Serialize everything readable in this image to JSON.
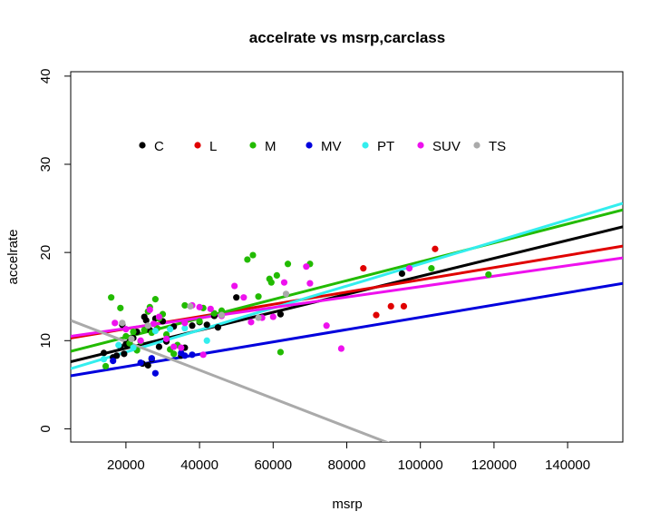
{
  "chart_data": {
    "type": "scatter",
    "title": "accelrate vs msrp,carclass",
    "xlabel": "msrp",
    "ylabel": "accelrate",
    "xlim": [
      5000,
      155000
    ],
    "ylim": [
      -1.5,
      40.5
    ],
    "x_ticks": [
      20000,
      40000,
      60000,
      80000,
      100000,
      120000,
      140000
    ],
    "x_tick_labels": [
      "20000",
      "40000",
      "60000",
      "80000",
      "100000",
      "120000",
      "140000"
    ],
    "y_ticks": [
      0,
      10,
      20,
      30,
      40
    ],
    "y_tick_labels": [
      "0",
      "10",
      "20",
      "30",
      "40"
    ],
    "grid": false,
    "legend": {
      "placement": "top-left-inside",
      "entries": [
        "C",
        "L",
        "M",
        "MV",
        "PT",
        "SUV",
        "TS"
      ]
    },
    "series": [
      {
        "name": "C",
        "color": "#000000",
        "points": [
          [
            14000,
            8.6
          ],
          [
            16500,
            8.1
          ],
          [
            17500,
            8.3
          ],
          [
            18500,
            9.3
          ],
          [
            19000,
            11.8
          ],
          [
            19500,
            8.5
          ],
          [
            20000,
            9.6
          ],
          [
            21000,
            9.9
          ],
          [
            22000,
            10.3
          ],
          [
            23000,
            11.0
          ],
          [
            24500,
            7.4
          ],
          [
            25000,
            12.7
          ],
          [
            25500,
            12.3
          ],
          [
            26000,
            7.2
          ],
          [
            26500,
            11.2
          ],
          [
            27000,
            7.9
          ],
          [
            28000,
            12.5
          ],
          [
            29000,
            9.3
          ],
          [
            30000,
            12.2
          ],
          [
            31000,
            9.9
          ],
          [
            33000,
            11.6
          ],
          [
            35000,
            8.3
          ],
          [
            36000,
            9.2
          ],
          [
            38000,
            11.7
          ],
          [
            40000,
            12.1
          ],
          [
            42000,
            11.8
          ],
          [
            44000,
            12.8
          ],
          [
            45000,
            11.5
          ],
          [
            50000,
            14.9
          ],
          [
            62000,
            13.0
          ],
          [
            95000,
            17.6
          ]
        ],
        "fit": [
          7.1,
          0.000102
        ]
      },
      {
        "name": "L",
        "color": "#e00000",
        "points": [
          [
            84500,
            18.2
          ],
          [
            88000,
            12.9
          ],
          [
            92000,
            13.9
          ],
          [
            95500,
            13.9
          ],
          [
            104000,
            20.4
          ]
        ],
        "fit": [
          9.95,
          6.95e-05
        ]
      },
      {
        "name": "M",
        "color": "#22bb00",
        "points": [
          [
            14500,
            7.1
          ],
          [
            16000,
            14.9
          ],
          [
            18500,
            13.7
          ],
          [
            20000,
            10.5
          ],
          [
            21000,
            9.7
          ],
          [
            22000,
            11.0
          ],
          [
            23000,
            8.9
          ],
          [
            24000,
            9.9
          ],
          [
            25000,
            11.2
          ],
          [
            26000,
            13.3
          ],
          [
            26500,
            13.8
          ],
          [
            27000,
            10.9
          ],
          [
            28000,
            14.7
          ],
          [
            28500,
            11.4
          ],
          [
            29000,
            12.5
          ],
          [
            30000,
            13.0
          ],
          [
            31000,
            10.7
          ],
          [
            32000,
            9.0
          ],
          [
            33000,
            8.5
          ],
          [
            34000,
            9.5
          ],
          [
            36000,
            14.0
          ],
          [
            40000,
            12.2
          ],
          [
            41000,
            13.7
          ],
          [
            44000,
            13.1
          ],
          [
            46000,
            13.4
          ],
          [
            53000,
            19.2
          ],
          [
            54500,
            19.7
          ],
          [
            56000,
            15.0
          ],
          [
            59000,
            17.0
          ],
          [
            59500,
            16.6
          ],
          [
            61000,
            17.4
          ],
          [
            62000,
            8.7
          ],
          [
            64000,
            18.7
          ],
          [
            70000,
            18.7
          ],
          [
            103000,
            18.2
          ],
          [
            118500,
            17.5
          ]
        ],
        "fit": [
          8.25,
          0.000107
        ]
      },
      {
        "name": "MV",
        "color": "#0000dd",
        "points": [
          [
            16500,
            7.7
          ],
          [
            24000,
            7.5
          ],
          [
            27000,
            8.0
          ],
          [
            28000,
            6.3
          ],
          [
            35000,
            8.6
          ],
          [
            36000,
            8.3
          ],
          [
            38000,
            8.4
          ]
        ],
        "fit": [
          5.66,
          6.99e-05
        ]
      },
      {
        "name": "PT",
        "color": "#33eeee",
        "points": [
          [
            14000,
            7.9
          ],
          [
            18000,
            9.5
          ],
          [
            22000,
            9.2
          ],
          [
            28000,
            11.1
          ],
          [
            32000,
            11.3
          ],
          [
            36000,
            11.4
          ],
          [
            42000,
            10.0
          ]
        ],
        "fit": [
          6.2,
          0.000125
        ]
      },
      {
        "name": "SUV",
        "color": "#ee11ee",
        "points": [
          [
            17000,
            12.0
          ],
          [
            20000,
            11.3
          ],
          [
            24000,
            10.0
          ],
          [
            26500,
            13.5
          ],
          [
            27500,
            11.9
          ],
          [
            29000,
            12.7
          ],
          [
            31000,
            10.2
          ],
          [
            33000,
            9.3
          ],
          [
            35000,
            9.2
          ],
          [
            36000,
            12.0
          ],
          [
            38000,
            14.0
          ],
          [
            40000,
            13.8
          ],
          [
            41000,
            8.4
          ],
          [
            43000,
            13.6
          ],
          [
            46000,
            12.8
          ],
          [
            49500,
            16.2
          ],
          [
            52000,
            14.9
          ],
          [
            54000,
            12.1
          ],
          [
            57000,
            12.6
          ],
          [
            60000,
            12.7
          ],
          [
            63000,
            16.6
          ],
          [
            69000,
            18.4
          ],
          [
            70000,
            16.5
          ],
          [
            74500,
            11.7
          ],
          [
            78500,
            9.1
          ],
          [
            97000,
            18.2
          ]
        ],
        "fit": [
          10.2,
          5.93e-05
        ]
      },
      {
        "name": "TS",
        "color": "#aaaaaa",
        "points": [
          [
            19000,
            12.0
          ],
          [
            21500,
            10.2
          ],
          [
            26000,
            11.7
          ],
          [
            37500,
            13.9
          ],
          [
            46000,
            12.9
          ],
          [
            56000,
            12.6
          ],
          [
            63500,
            15.3
          ]
        ],
        "fit": [
          13.1,
          -0.000161
        ]
      }
    ]
  }
}
